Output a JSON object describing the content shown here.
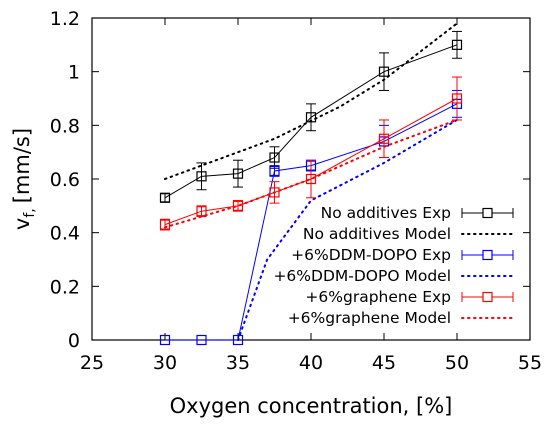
{
  "chart_data": {
    "type": "line",
    "xlabel": "Oxygen concentration, [%]",
    "ylabel": "v",
    "ylabel_sub": "f,",
    "ylabel_unit": "[mm/s]",
    "xlim": [
      25,
      55
    ],
    "ylim": [
      0,
      1.2
    ],
    "xticks": [
      25,
      30,
      35,
      40,
      45,
      50,
      55
    ],
    "yticks": [
      0,
      0.2,
      0.4,
      0.6,
      0.8,
      1,
      1.2
    ],
    "grid": false,
    "legend_position": "bottom-right",
    "series": [
      {
        "name": "No additives Exp",
        "kind": "experiment",
        "color": "#000000",
        "x": [
          30,
          32.5,
          35,
          37.5,
          40,
          45,
          50
        ],
        "y": [
          0.53,
          0.61,
          0.62,
          0.68,
          0.83,
          1.0,
          1.1
        ],
        "err": [
          0.015,
          0.05,
          0.05,
          0.04,
          0.05,
          0.07,
          0.05
        ]
      },
      {
        "name": "No additives Model",
        "kind": "model",
        "color": "#000000",
        "x": [
          30,
          37.5,
          42,
          45,
          50
        ],
        "y": [
          0.6,
          0.75,
          0.87,
          0.97,
          1.18
        ]
      },
      {
        "name": "+6%DDM-DOPO Exp",
        "kind": "experiment",
        "color": "#0000ff",
        "x": [
          30,
          32.5,
          35,
          37.5,
          40,
          45,
          50
        ],
        "y": [
          0.0,
          0.0,
          0.0,
          0.63,
          0.65,
          0.74,
          0.88
        ],
        "err": [
          0,
          0,
          0,
          0.02,
          0.02,
          0.06,
          0.05
        ]
      },
      {
        "name": "+6%DDM-DOPO Model",
        "kind": "model",
        "color": "#0000ff",
        "x": [
          35,
          37,
          40,
          45,
          50
        ],
        "y": [
          0.0,
          0.3,
          0.52,
          0.66,
          0.82
        ]
      },
      {
        "name": "+6%graphene Exp",
        "kind": "experiment",
        "color": "#ff0000",
        "x": [
          30,
          32.5,
          35,
          37.5,
          40,
          45,
          50
        ],
        "y": [
          0.43,
          0.48,
          0.5,
          0.55,
          0.6,
          0.75,
          0.9
        ],
        "err": [
          0.02,
          0.02,
          0.02,
          0.04,
          0.07,
          0.07,
          0.08
        ]
      },
      {
        "name": "+6%graphene Model",
        "kind": "model",
        "color": "#ff0000",
        "x": [
          30,
          35,
          40,
          45,
          50
        ],
        "y": [
          0.42,
          0.5,
          0.6,
          0.72,
          0.82
        ]
      }
    ]
  }
}
